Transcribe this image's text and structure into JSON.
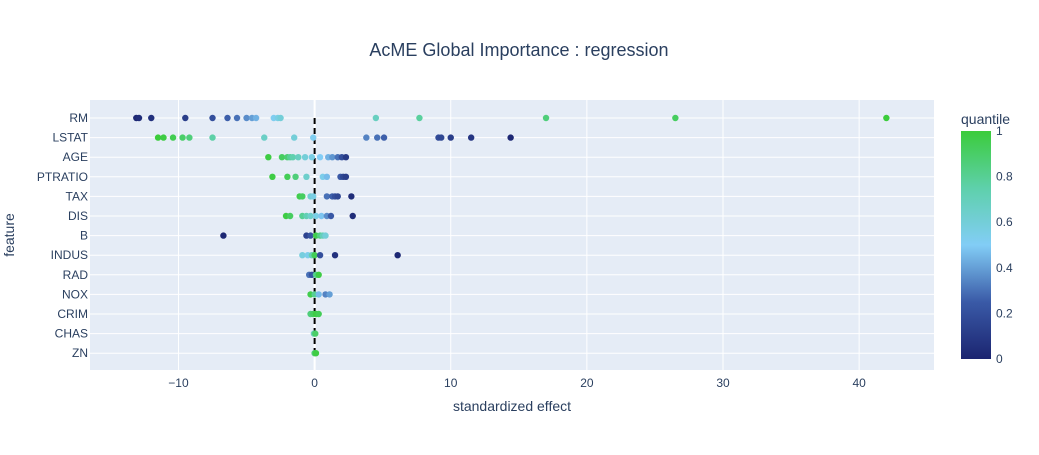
{
  "chart_data": {
    "type": "scatter",
    "title": "AcME Global Importance : regression",
    "xlabel": "standardized effect",
    "ylabel": "feature",
    "xlim": [
      -16.5,
      45.5
    ],
    "x_ticks": [
      -10,
      0,
      10,
      20,
      30,
      40
    ],
    "x_tick_labels": [
      "−10",
      "0",
      "10",
      "20",
      "30",
      "40"
    ],
    "categories": [
      "RM",
      "LSTAT",
      "AGE",
      "PTRATIO",
      "TAX",
      "DIS",
      "B",
      "INDUS",
      "RAD",
      "NOX",
      "CRIM",
      "CHAS",
      "ZN"
    ],
    "grid": true,
    "zero_line": "dashed",
    "colorbar": {
      "title": "quantile",
      "range": [
        0,
        1
      ],
      "ticks": [
        0,
        0.2,
        0.4,
        0.6,
        0.8,
        1
      ],
      "tick_labels": [
        "0",
        "0.2",
        "0.4",
        "0.6",
        "0.8",
        "1"
      ],
      "colors": [
        "#1b2470",
        "#3a5aa7",
        "#82cdf6",
        "#5ed0ab",
        "#3bcc3b"
      ]
    },
    "background_color": "#e5ecf6",
    "series": [
      {
        "feature": "RM",
        "points": [
          {
            "x": -13.1,
            "q": 0.02
          },
          {
            "x": -12.9,
            "q": 0.04
          },
          {
            "x": -12.0,
            "q": 0.06
          },
          {
            "x": -9.5,
            "q": 0.12
          },
          {
            "x": -7.5,
            "q": 0.2
          },
          {
            "x": -6.4,
            "q": 0.26
          },
          {
            "x": -5.7,
            "q": 0.3
          },
          {
            "x": -5.0,
            "q": 0.36
          },
          {
            "x": -4.6,
            "q": 0.4
          },
          {
            "x": -4.3,
            "q": 0.44
          },
          {
            "x": -3.0,
            "q": 0.52
          },
          {
            "x": -2.7,
            "q": 0.56
          },
          {
            "x": -2.5,
            "q": 0.6
          },
          {
            "x": 4.5,
            "q": 0.68
          },
          {
            "x": 7.7,
            "q": 0.78
          },
          {
            "x": 17.0,
            "q": 0.86
          },
          {
            "x": 26.5,
            "q": 0.92
          },
          {
            "x": 42.0,
            "q": 1.0
          }
        ]
      },
      {
        "feature": "LSTAT",
        "points": [
          {
            "x": -11.5,
            "q": 1.0
          },
          {
            "x": -11.1,
            "q": 0.98
          },
          {
            "x": -10.4,
            "q": 0.95
          },
          {
            "x": -9.7,
            "q": 0.9
          },
          {
            "x": -9.2,
            "q": 0.86
          },
          {
            "x": -7.5,
            "q": 0.76
          },
          {
            "x": -3.7,
            "q": 0.66
          },
          {
            "x": -1.5,
            "q": 0.6
          },
          {
            "x": -0.1,
            "q": 0.52
          },
          {
            "x": 3.8,
            "q": 0.34
          },
          {
            "x": 4.6,
            "q": 0.3
          },
          {
            "x": 5.1,
            "q": 0.26
          },
          {
            "x": 9.1,
            "q": 0.18
          },
          {
            "x": 9.3,
            "q": 0.16
          },
          {
            "x": 10.0,
            "q": 0.12
          },
          {
            "x": 11.5,
            "q": 0.08
          },
          {
            "x": 14.4,
            "q": 0.02
          }
        ]
      },
      {
        "feature": "AGE",
        "points": [
          {
            "x": -3.4,
            "q": 0.98
          },
          {
            "x": -2.4,
            "q": 0.92
          },
          {
            "x": -2.0,
            "q": 0.88
          },
          {
            "x": -1.8,
            "q": 0.8
          },
          {
            "x": -1.6,
            "q": 0.74
          },
          {
            "x": -1.2,
            "q": 0.68
          },
          {
            "x": -0.7,
            "q": 0.6
          },
          {
            "x": -0.2,
            "q": 0.56
          },
          {
            "x": 0.4,
            "q": 0.5
          },
          {
            "x": 1.0,
            "q": 0.44
          },
          {
            "x": 1.3,
            "q": 0.38
          },
          {
            "x": 1.7,
            "q": 0.3
          },
          {
            "x": 2.0,
            "q": 0.2
          },
          {
            "x": 2.3,
            "q": 0.1
          }
        ]
      },
      {
        "feature": "PTRATIO",
        "points": [
          {
            "x": -3.1,
            "q": 0.98
          },
          {
            "x": -2.0,
            "q": 0.94
          },
          {
            "x": -1.4,
            "q": 0.86
          },
          {
            "x": -0.6,
            "q": 0.64
          },
          {
            "x": 0.6,
            "q": 0.54
          },
          {
            "x": 0.9,
            "q": 0.46
          },
          {
            "x": 1.9,
            "q": 0.24
          },
          {
            "x": 2.1,
            "q": 0.16
          },
          {
            "x": 2.3,
            "q": 0.12
          }
        ]
      },
      {
        "feature": "TAX",
        "points": [
          {
            "x": -1.1,
            "q": 0.96
          },
          {
            "x": -0.9,
            "q": 0.92
          },
          {
            "x": -0.3,
            "q": 0.62
          },
          {
            "x": -0.1,
            "q": 0.56
          },
          {
            "x": 0.9,
            "q": 0.3
          },
          {
            "x": 1.3,
            "q": 0.26
          },
          {
            "x": 1.5,
            "q": 0.2
          },
          {
            "x": 1.7,
            "q": 0.16
          },
          {
            "x": 2.7,
            "q": 0.04
          }
        ]
      },
      {
        "feature": "DIS",
        "points": [
          {
            "x": -2.1,
            "q": 0.98
          },
          {
            "x": -1.8,
            "q": 0.92
          },
          {
            "x": -0.9,
            "q": 0.8
          },
          {
            "x": -0.6,
            "q": 0.72
          },
          {
            "x": -0.3,
            "q": 0.64
          },
          {
            "x": 0.1,
            "q": 0.56
          },
          {
            "x": 0.5,
            "q": 0.48
          },
          {
            "x": 0.9,
            "q": 0.36
          },
          {
            "x": 1.2,
            "q": 0.24
          },
          {
            "x": 2.8,
            "q": 0.04
          }
        ]
      },
      {
        "feature": "B",
        "points": [
          {
            "x": -6.7,
            "q": 0.02
          },
          {
            "x": -0.6,
            "q": 0.14
          },
          {
            "x": -0.3,
            "q": 0.22
          },
          {
            "x": 0.1,
            "q": 0.96
          },
          {
            "x": 0.4,
            "q": 0.84
          },
          {
            "x": 0.6,
            "q": 0.7
          },
          {
            "x": 0.8,
            "q": 0.6
          }
        ]
      },
      {
        "feature": "INDUS",
        "points": [
          {
            "x": -0.9,
            "q": 0.58
          },
          {
            "x": -0.5,
            "q": 0.54
          },
          {
            "x": -0.2,
            "q": 0.72
          },
          {
            "x": 0.0,
            "q": 0.94
          },
          {
            "x": 0.4,
            "q": 0.2
          },
          {
            "x": 1.5,
            "q": 0.06
          },
          {
            "x": 6.1,
            "q": 0.02
          }
        ]
      },
      {
        "feature": "RAD",
        "points": [
          {
            "x": -0.4,
            "q": 0.3
          },
          {
            "x": -0.2,
            "q": 0.22
          },
          {
            "x": 0.1,
            "q": 0.82
          },
          {
            "x": 0.3,
            "q": 0.98
          }
        ]
      },
      {
        "feature": "NOX",
        "points": [
          {
            "x": -0.3,
            "q": 0.96
          },
          {
            "x": 0.0,
            "q": 0.8
          },
          {
            "x": 0.3,
            "q": 0.46
          },
          {
            "x": 0.8,
            "q": 0.34
          },
          {
            "x": 1.1,
            "q": 0.4
          }
        ]
      },
      {
        "feature": "CRIM",
        "points": [
          {
            "x": -0.3,
            "q": 0.86
          },
          {
            "x": -0.1,
            "q": 0.92
          },
          {
            "x": 0.1,
            "q": 0.98
          },
          {
            "x": 0.3,
            "q": 0.94
          }
        ]
      },
      {
        "feature": "CHAS",
        "points": [
          {
            "x": -0.05,
            "q": 0.7
          },
          {
            "x": 0.05,
            "q": 0.9
          }
        ]
      },
      {
        "feature": "ZN",
        "points": [
          {
            "x": 0.0,
            "q": 0.88
          },
          {
            "x": 0.1,
            "q": 0.98
          }
        ]
      }
    ]
  }
}
